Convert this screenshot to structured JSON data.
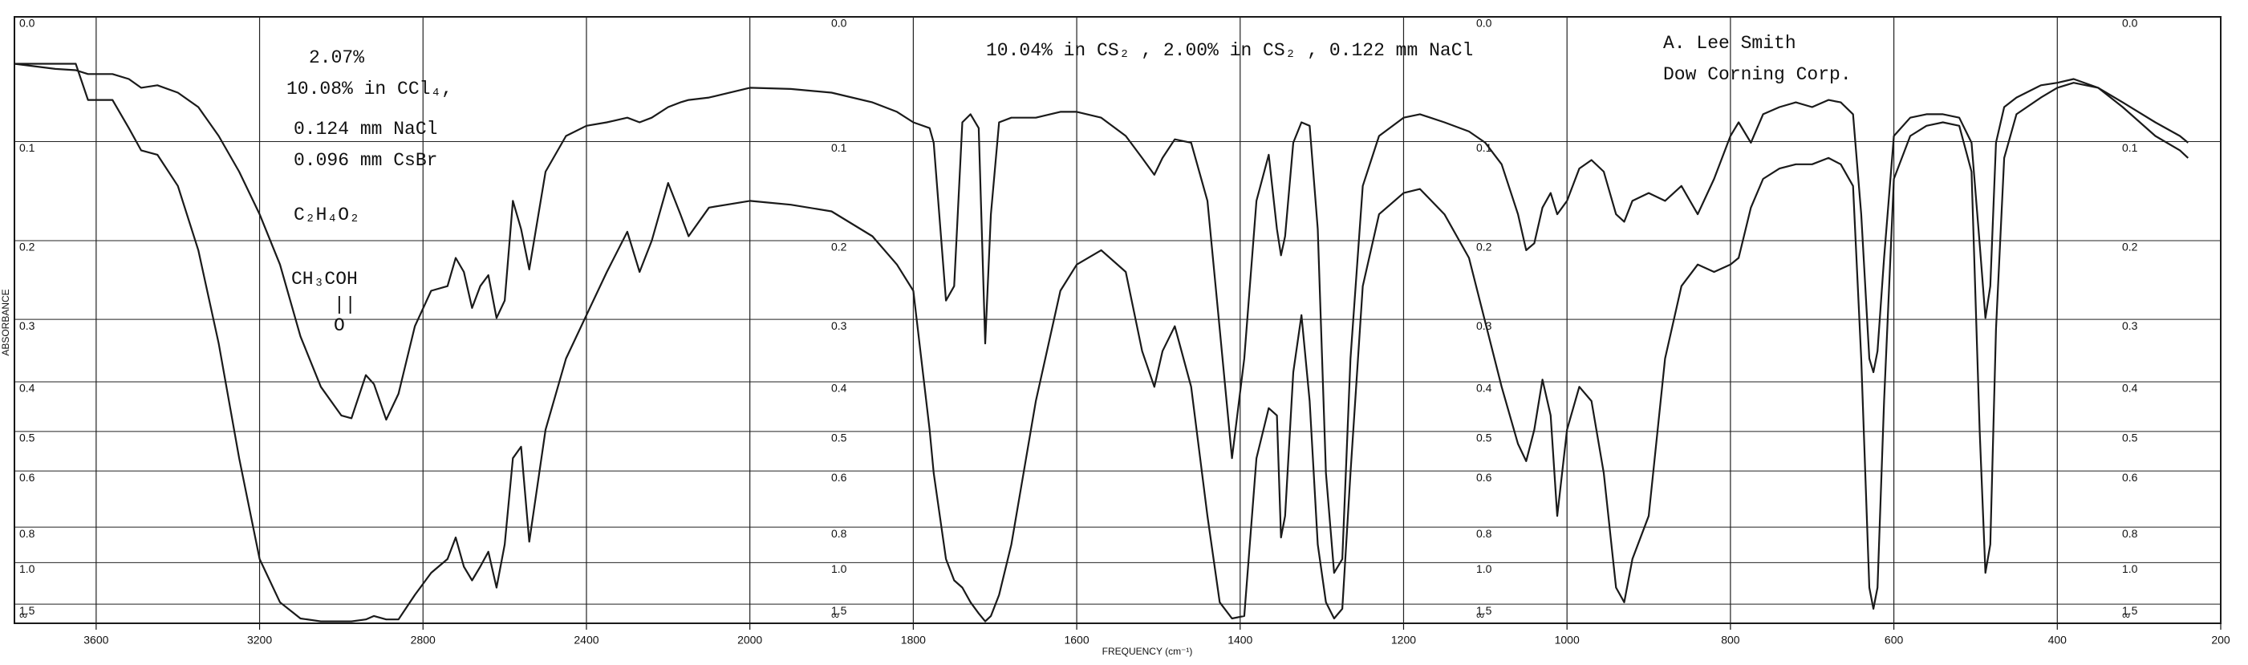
{
  "chart_data": {
    "type": "line",
    "xlabel": "FREQUENCY (cm⁻¹)",
    "ylabel": "ABSORBANCE",
    "yscale": "absorbance",
    "xlim": [
      3800,
      200
    ],
    "xbreak": 2000,
    "xticks": [
      3600,
      3200,
      2800,
      2400,
      2000,
      1800,
      1600,
      1400,
      1200,
      1000,
      800,
      600,
      400,
      200
    ],
    "ylim": [
      0,
      null
    ],
    "yticks": [
      {
        "value": 0,
        "label": "0.0"
      },
      0.1,
      0.2,
      0.3,
      0.4,
      0.5,
      0.6,
      0.8,
      {
        "value": 1,
        "label": "1.0"
      },
      1.5,
      {
        "value": null,
        "label": "∞"
      }
    ],
    "grid": true,
    "annotations": [
      "2.07%",
      "10.08% in CCl₄,",
      "0.124 mm NaCl",
      "0.096 mm CsBr",
      "C₂H₄O₂",
      "CH₃COH",
      "||",
      "O",
      "10.04% in CS₂ , 2.00% in CS₂ , 0.122 mm NaCl",
      "A. Lee Smith",
      "Dow Corning Corp."
    ],
    "x": [
      3800,
      3700,
      3650,
      3620,
      3560,
      3520,
      3490,
      3450,
      3400,
      3350,
      3300,
      3250,
      3200,
      3150,
      3100,
      3050,
      3000,
      2975,
      2940,
      2920,
      2890,
      2860,
      2820,
      2780,
      2740,
      2720,
      2700,
      2680,
      2660,
      2640,
      2620,
      2600,
      2580,
      2560,
      2540,
      2500,
      2450,
      2400,
      2350,
      2300,
      2270,
      2240,
      2200,
      2170,
      2150,
      2100,
      2000,
      1950,
      1900,
      1850,
      1820,
      1800,
      1780,
      1775,
      1760,
      1750,
      1740,
      1730,
      1720,
      1712,
      1705,
      1695,
      1680,
      1650,
      1620,
      1600,
      1570,
      1540,
      1520,
      1505,
      1495,
      1480,
      1460,
      1440,
      1425,
      1410,
      1395,
      1380,
      1365,
      1355,
      1350,
      1345,
      1335,
      1325,
      1315,
      1305,
      1295,
      1285,
      1275,
      1265,
      1250,
      1230,
      1200,
      1180,
      1150,
      1120,
      1100,
      1080,
      1060,
      1050,
      1040,
      1030,
      1020,
      1012,
      1000,
      985,
      970,
      955,
      940,
      930,
      920,
      900,
      880,
      860,
      840,
      820,
      800,
      790,
      775,
      760,
      740,
      720,
      700,
      680,
      665,
      650,
      640,
      630,
      625,
      620,
      612,
      600,
      580,
      560,
      540,
      520,
      505,
      495,
      488,
      482,
      475,
      465,
      450,
      420,
      400,
      380,
      350,
      320,
      280,
      250,
      240
    ],
    "series": [
      {
        "color": "#1a1a1a",
        "values": [
          0.035,
          0.039,
          0.04,
          0.043,
          0.043,
          0.047,
          0.054,
          0.052,
          0.058,
          0.07,
          0.095,
          0.128,
          0.171,
          0.228,
          0.325,
          0.409,
          0.465,
          0.471,
          0.388,
          0.404,
          0.474,
          0.422,
          0.31,
          0.261,
          0.255,
          0.22,
          0.237,
          0.284,
          0.255,
          0.241,
          0.298,
          0.274,
          0.157,
          0.187,
          0.234,
          0.128,
          0.095,
          0.086,
          0.083,
          0.079,
          0.083,
          0.079,
          0.07,
          0.066,
          0.064,
          0.062,
          0.054,
          0.055,
          0.058,
          0.066,
          0.074,
          0.083,
          0.088,
          0.101,
          0.274,
          0.255,
          0.083,
          0.076,
          0.088,
          0.336,
          0.171,
          0.083,
          0.079,
          0.079,
          0.074,
          0.074,
          0.079,
          0.095,
          0.115,
          0.131,
          0.115,
          0.098,
          0.101,
          0.157,
          0.314,
          0.565,
          0.36,
          0.157,
          0.112,
          0.187,
          0.217,
          0.195,
          0.101,
          0.083,
          0.086,
          0.187,
          0.606,
          1.08,
          0.975,
          0.36,
          0.142,
          0.095,
          0.079,
          0.076,
          0.083,
          0.091,
          0.101,
          0.121,
          0.171,
          0.211,
          0.203,
          0.164,
          0.149,
          0.171,
          0.157,
          0.125,
          0.117,
          0.128,
          0.171,
          0.179,
          0.157,
          0.149,
          0.157,
          0.142,
          0.171,
          0.135,
          0.095,
          0.083,
          0.101,
          0.076,
          0.07,
          0.066,
          0.07,
          0.064,
          0.066,
          0.076,
          0.171,
          0.36,
          0.383,
          0.348,
          0.22,
          0.095,
          0.079,
          0.076,
          0.076,
          0.079,
          0.101,
          0.203,
          0.298,
          0.255,
          0.101,
          0.07,
          0.062,
          0.052,
          0.05,
          0.047,
          0.054,
          0.066,
          0.083,
          0.095,
          0.101
        ]
      },
      {
        "color": "#1a1a1a",
        "values": [
          0.035,
          0.035,
          0.035,
          0.064,
          0.064,
          0.088,
          0.108,
          0.112,
          0.142,
          0.211,
          0.336,
          0.565,
          0.975,
          1.46,
          2.1,
          2.5,
          2.5,
          2.5,
          2.2,
          1.92,
          2.2,
          2.2,
          1.33,
          1.08,
          0.975,
          0.849,
          1.03,
          1.15,
          1.03,
          0.928,
          1.23,
          0.886,
          0.565,
          0.536,
          0.871,
          0.496,
          0.36,
          0.294,
          0.237,
          0.19,
          0.237,
          0.2,
          0.139,
          0.171,
          0.195,
          0.164,
          0.157,
          0.161,
          0.168,
          0.195,
          0.228,
          0.261,
          0.496,
          0.606,
          0.975,
          1.15,
          1.23,
          1.46,
          1.79,
          2.5,
          1.92,
          1.33,
          0.886,
          0.436,
          0.261,
          0.228,
          0.211,
          0.237,
          0.348,
          0.409,
          0.348,
          0.31,
          0.409,
          0.752,
          1.46,
          2.1,
          1.92,
          0.565,
          0.45,
          0.465,
          0.849,
          0.752,
          0.383,
          0.294,
          0.436,
          0.886,
          1.46,
          2.1,
          1.62,
          0.606,
          0.255,
          0.171,
          0.149,
          0.145,
          0.171,
          0.22,
          0.304,
          0.409,
          0.529,
          0.573,
          0.496,
          0.396,
          0.465,
          0.752,
          0.496,
          0.409,
          0.436,
          0.606,
          1.23,
          1.46,
          0.975,
          0.752,
          0.36,
          0.255,
          0.228,
          0.237,
          0.228,
          0.22,
          0.164,
          0.135,
          0.125,
          0.121,
          0.121,
          0.115,
          0.121,
          0.142,
          0.36,
          1.23,
          1.62,
          1.23,
          0.436,
          0.135,
          0.095,
          0.086,
          0.083,
          0.086,
          0.128,
          0.496,
          1.08,
          0.886,
          0.314,
          0.115,
          0.076,
          0.062,
          0.054,
          0.05,
          0.054,
          0.07,
          0.095,
          0.108,
          0.115
        ]
      }
    ]
  }
}
